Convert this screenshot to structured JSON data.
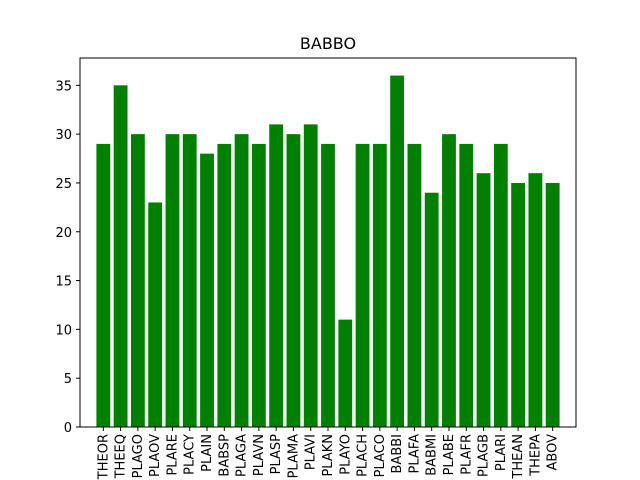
{
  "chart_data": {
    "type": "bar",
    "title": "BABBO",
    "xlabel": "",
    "ylabel": "",
    "categories": [
      "THEOR",
      "THEEQ",
      "PLAGO",
      "PLAOV",
      "PLARE",
      "PLACY",
      "PLAIN",
      "BABSP",
      "PLAGA",
      "PLAVN",
      "PLASP",
      "PLAMA",
      "PLAVI",
      "PLAKN",
      "PLAYO",
      "PLACH",
      "PLACO",
      "BABBI",
      "PLAFA",
      "BABMI",
      "PLABE",
      "PLAFR",
      "PLAGB",
      "PLARI",
      "THEAN",
      "THEPA",
      "ABOV"
    ],
    "values": [
      29,
      35,
      30,
      23,
      30,
      30,
      28,
      29,
      30,
      29,
      31,
      30,
      31,
      29,
      11,
      29,
      29,
      36,
      29,
      24,
      30,
      29,
      26,
      29,
      25,
      26,
      25
    ],
    "ylim": [
      0,
      37.8
    ],
    "yticks": [
      0,
      5,
      10,
      15,
      20,
      25,
      30,
      35
    ],
    "bar_color": "#008000",
    "grid": false
  }
}
